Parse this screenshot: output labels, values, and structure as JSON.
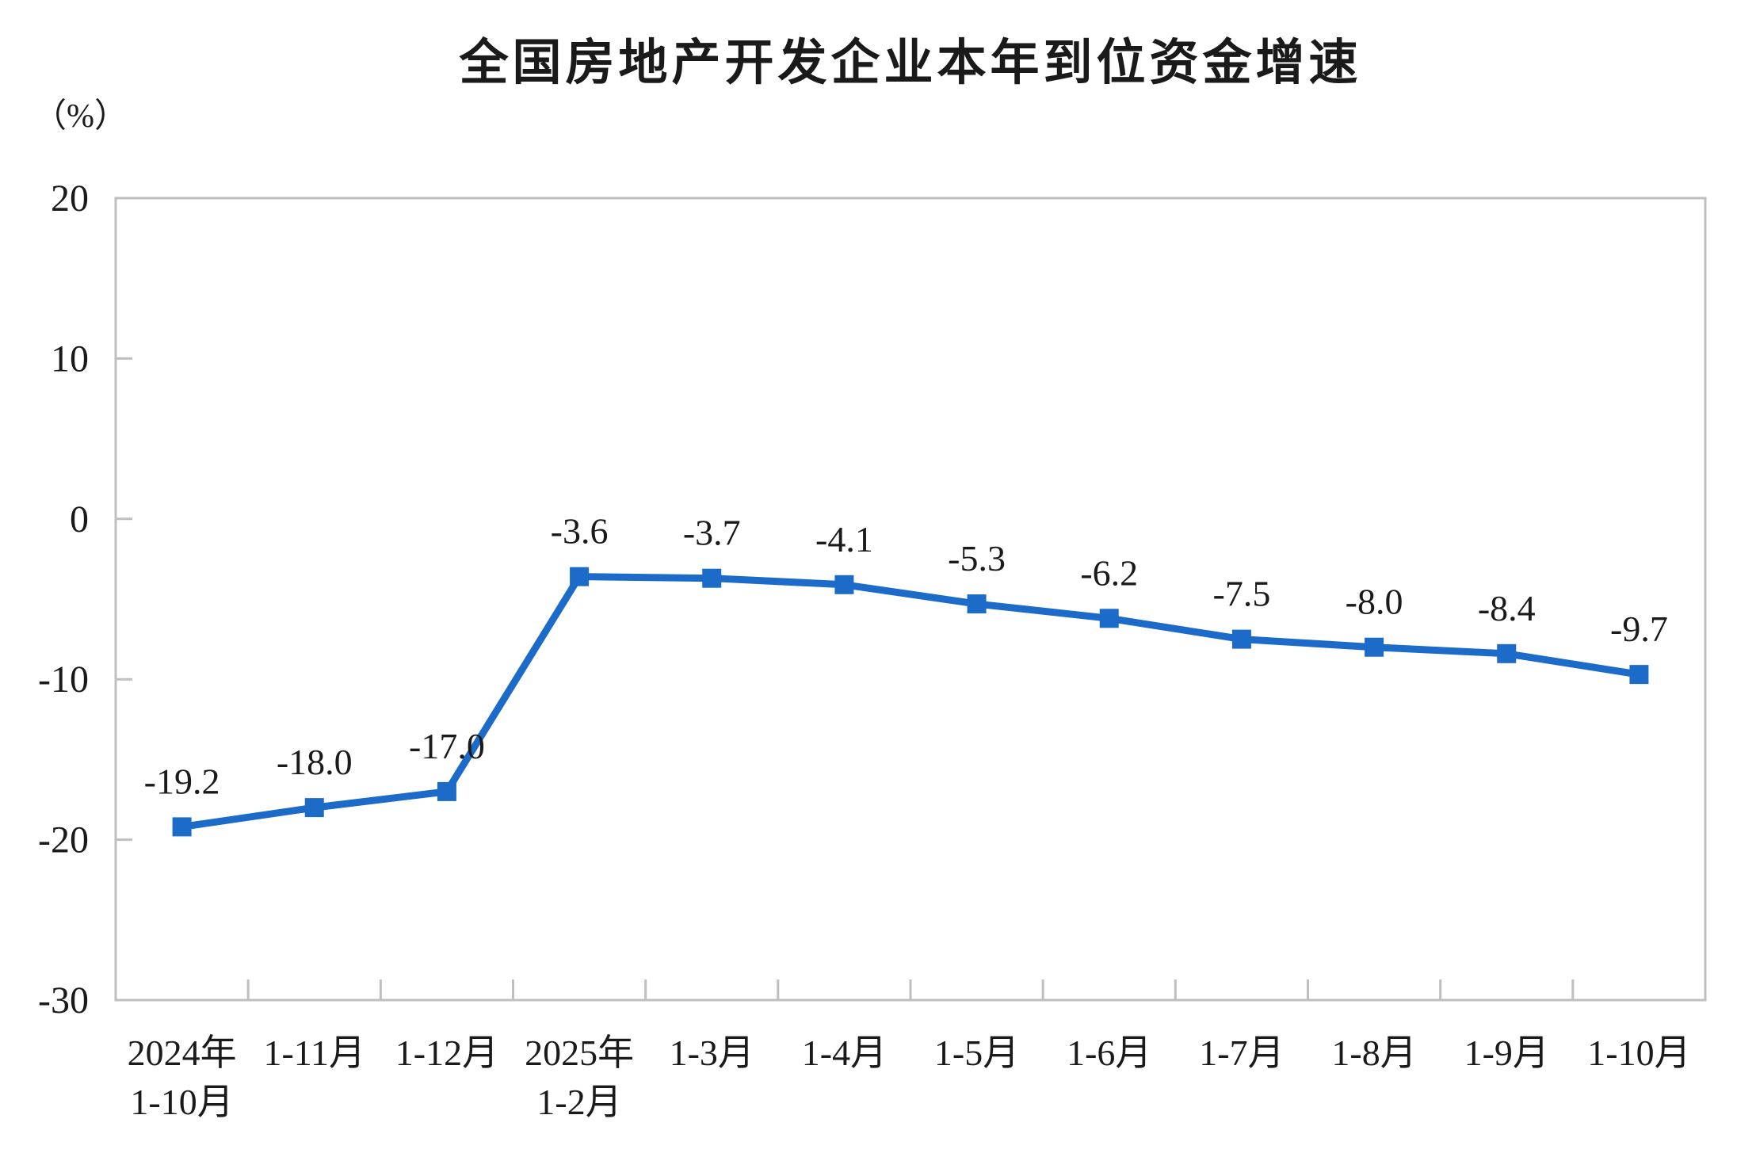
{
  "page": {
    "background_color": "#ffffff"
  },
  "chart_data": {
    "type": "line",
    "title": "全国房地产开发企业本年到位资金增速",
    "ylabel": "（%）",
    "xlabel": "",
    "categories": [
      "2024年\n1-10月",
      "1-11月",
      "1-12月",
      "2025年\n1-2月",
      "1-3月",
      "1-4月",
      "1-5月",
      "1-6月",
      "1-7月",
      "1-8月",
      "1-9月",
      "1-10月"
    ],
    "values": [
      -19.2,
      -18.0,
      -17.0,
      -3.6,
      -3.7,
      -4.1,
      -5.3,
      -6.2,
      -7.5,
      -8.0,
      -8.4,
      -9.7
    ],
    "data_labels": [
      "-19.2",
      "-18.0",
      "-17.0",
      "-3.6",
      "-3.7",
      "-4.1",
      "-5.3",
      "-6.2",
      "-7.5",
      "-8.0",
      "-8.4",
      "-9.7"
    ],
    "ylim": [
      -30,
      20
    ],
    "yticks": [
      20,
      10,
      0,
      -10,
      -20,
      -30
    ],
    "ytick_labels": [
      "20",
      "10",
      "0",
      "-10",
      "-20",
      "-30"
    ],
    "grid": false,
    "legend": "none",
    "marker": "square",
    "colors": {
      "series": "#1C6BC8",
      "axis": "#BFBFBF",
      "text": "#1A1A1A"
    }
  }
}
